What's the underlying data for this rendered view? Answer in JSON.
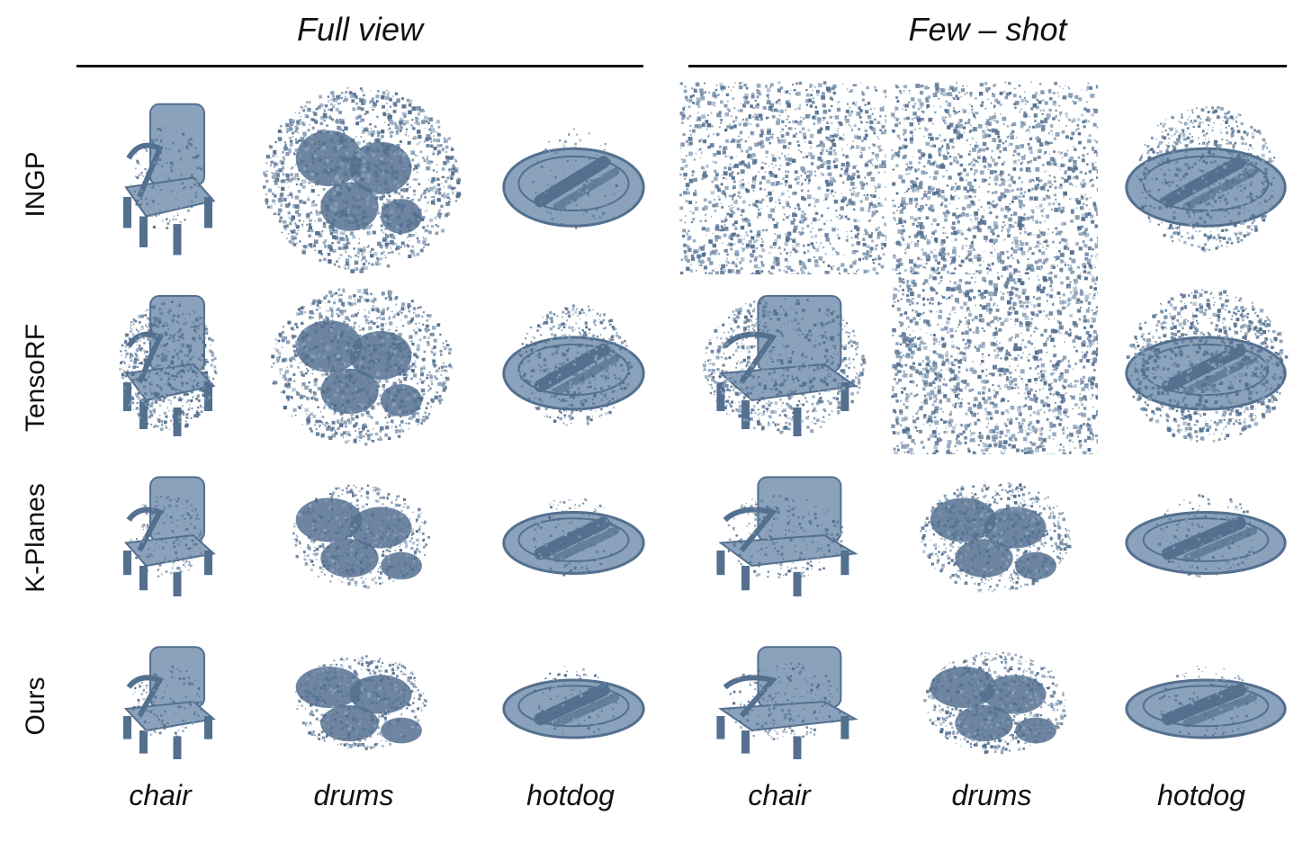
{
  "header": {
    "groups": [
      {
        "label": "Full view"
      },
      {
        "label": "Few – shot"
      }
    ]
  },
  "rows": [
    {
      "label": "INGP"
    },
    {
      "label": "TensoRF"
    },
    {
      "label": "K-Planes"
    },
    {
      "label": "Ours"
    }
  ],
  "columns": [
    {
      "label": "chair",
      "object": "chair"
    },
    {
      "label": "drums",
      "object": "drums"
    },
    {
      "label": "hotdog",
      "object": "hotdog"
    },
    {
      "label": "chair",
      "object": "chair"
    },
    {
      "label": "drums",
      "object": "drums"
    },
    {
      "label": "hotdog",
      "object": "hotdog"
    }
  ],
  "colors": {
    "point_cloud": "#54708f",
    "point_cloud_light": "#8aa2bb",
    "text": "#111111"
  }
}
